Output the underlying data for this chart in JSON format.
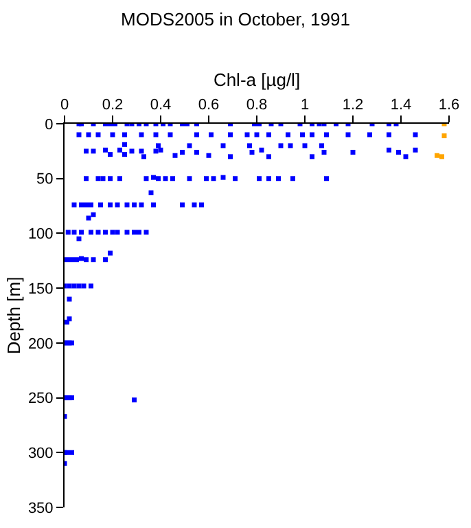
{
  "chart_data": {
    "type": "scatter",
    "title": "MODS2005 in October, 1991",
    "xlabel": "Chl-a [µg/l]",
    "ylabel": "Depth [m]",
    "xlim": [
      0,
      1.6
    ],
    "xticks": [
      0,
      0.2,
      0.4,
      0.6,
      0.8,
      1,
      1.2,
      1.4,
      1.6
    ],
    "ylim": [
      350,
      0
    ],
    "yticks": [
      0,
      50,
      100,
      150,
      200,
      250,
      300,
      350
    ],
    "marker": "square",
    "series": [
      {
        "color": "#0000ff",
        "x": [
          0.06,
          0.07,
          0.12,
          0.17,
          0.19,
          0.21,
          0.26,
          0.28,
          0.31,
          0.34,
          0.38,
          0.41,
          0.44,
          0.49,
          0.51,
          0.55,
          0.69,
          0.79,
          0.81,
          0.86,
          0.9,
          0.98,
          1.03,
          1.06,
          1.08,
          1.13,
          1.18,
          1.28,
          1.35,
          1.38,
          0.06,
          0.1,
          0.14,
          0.2,
          0.25,
          0.32,
          0.38,
          0.44,
          0.55,
          0.61,
          0.69,
          0.76,
          0.8,
          0.85,
          0.93,
          0.99,
          1.03,
          1.09,
          1.18,
          1.27,
          1.35,
          1.46,
          0.09,
          0.12,
          0.17,
          0.19,
          0.23,
          0.25,
          0.25,
          0.28,
          0.32,
          0.33,
          0.38,
          0.39,
          0.4,
          0.46,
          0.49,
          0.52,
          0.55,
          0.6,
          0.66,
          0.69,
          0.77,
          0.78,
          0.82,
          0.85,
          0.9,
          0.94,
          1.0,
          1.03,
          1.07,
          1.08,
          1.2,
          1.35,
          1.39,
          1.42,
          1.46,
          0.09,
          0.14,
          0.16,
          0.19,
          0.23,
          0.34,
          0.37,
          0.39,
          0.42,
          0.45,
          0.52,
          0.59,
          0.62,
          0.66,
          0.71,
          0.81,
          0.85,
          0.89,
          0.95,
          1.09,
          0.36,
          0.04,
          0.07,
          0.09,
          0.11,
          0.15,
          0.19,
          0.22,
          0.26,
          0.29,
          0.32,
          0.37,
          0.49,
          0.54,
          0.57,
          0.12,
          0.1,
          0.015,
          0.04,
          0.07,
          0.11,
          0.14,
          0.17,
          0.2,
          0.22,
          0.26,
          0.29,
          0.31,
          0.34,
          0.06,
          0.19,
          0.01,
          0.03,
          0.05,
          0.07,
          0.09,
          0.12,
          0.17,
          0,
          0.02,
          0.04,
          0.06,
          0.08,
          0.11,
          0.02,
          0.02,
          0.01,
          0,
          0.01,
          0.02,
          0.03,
          0,
          0.01,
          0.02,
          0.03,
          0.29,
          0,
          0,
          0.01,
          0.03,
          0
        ],
        "values": [
          0,
          0,
          0,
          0,
          0,
          0,
          0,
          0,
          0,
          0,
          0,
          0,
          0,
          0,
          0,
          0,
          0,
          0,
          0,
          0,
          0,
          0,
          0,
          0,
          0,
          0,
          0,
          0,
          0,
          0,
          10,
          10,
          10,
          10,
          10,
          10,
          10,
          10,
          10,
          10,
          10,
          10,
          10,
          10,
          10,
          10,
          10,
          10,
          10,
          10,
          10,
          10,
          25,
          25,
          24,
          28,
          24,
          19,
          28,
          25,
          25,
          30,
          25,
          20,
          24,
          29,
          26,
          20,
          26,
          29,
          20,
          30,
          20,
          26,
          24,
          30,
          20,
          20,
          20,
          30,
          20,
          26,
          26,
          24,
          26,
          30,
          24,
          50,
          50,
          50,
          50,
          50,
          50,
          49,
          50,
          50,
          50,
          50,
          50,
          50,
          49,
          50,
          50,
          50,
          50,
          50,
          50,
          63,
          74,
          74,
          74,
          74,
          74,
          74,
          74,
          74,
          74,
          74,
          74,
          74,
          74,
          74,
          83,
          86,
          99,
          99,
          99,
          99,
          99,
          99,
          99,
          99,
          99,
          99,
          99,
          99,
          105,
          118,
          124,
          124,
          124,
          123,
          124,
          124,
          124,
          148,
          148,
          148,
          148,
          148,
          148,
          160,
          178,
          181,
          200,
          200,
          200,
          200,
          250,
          250,
          250,
          250,
          252,
          267,
          300,
          300,
          300,
          310
        ]
      },
      {
        "color": "#ffa500",
        "x": [
          1.58,
          1.58,
          1.55,
          1.57
        ],
        "values": [
          0,
          11,
          29,
          30
        ]
      }
    ]
  }
}
